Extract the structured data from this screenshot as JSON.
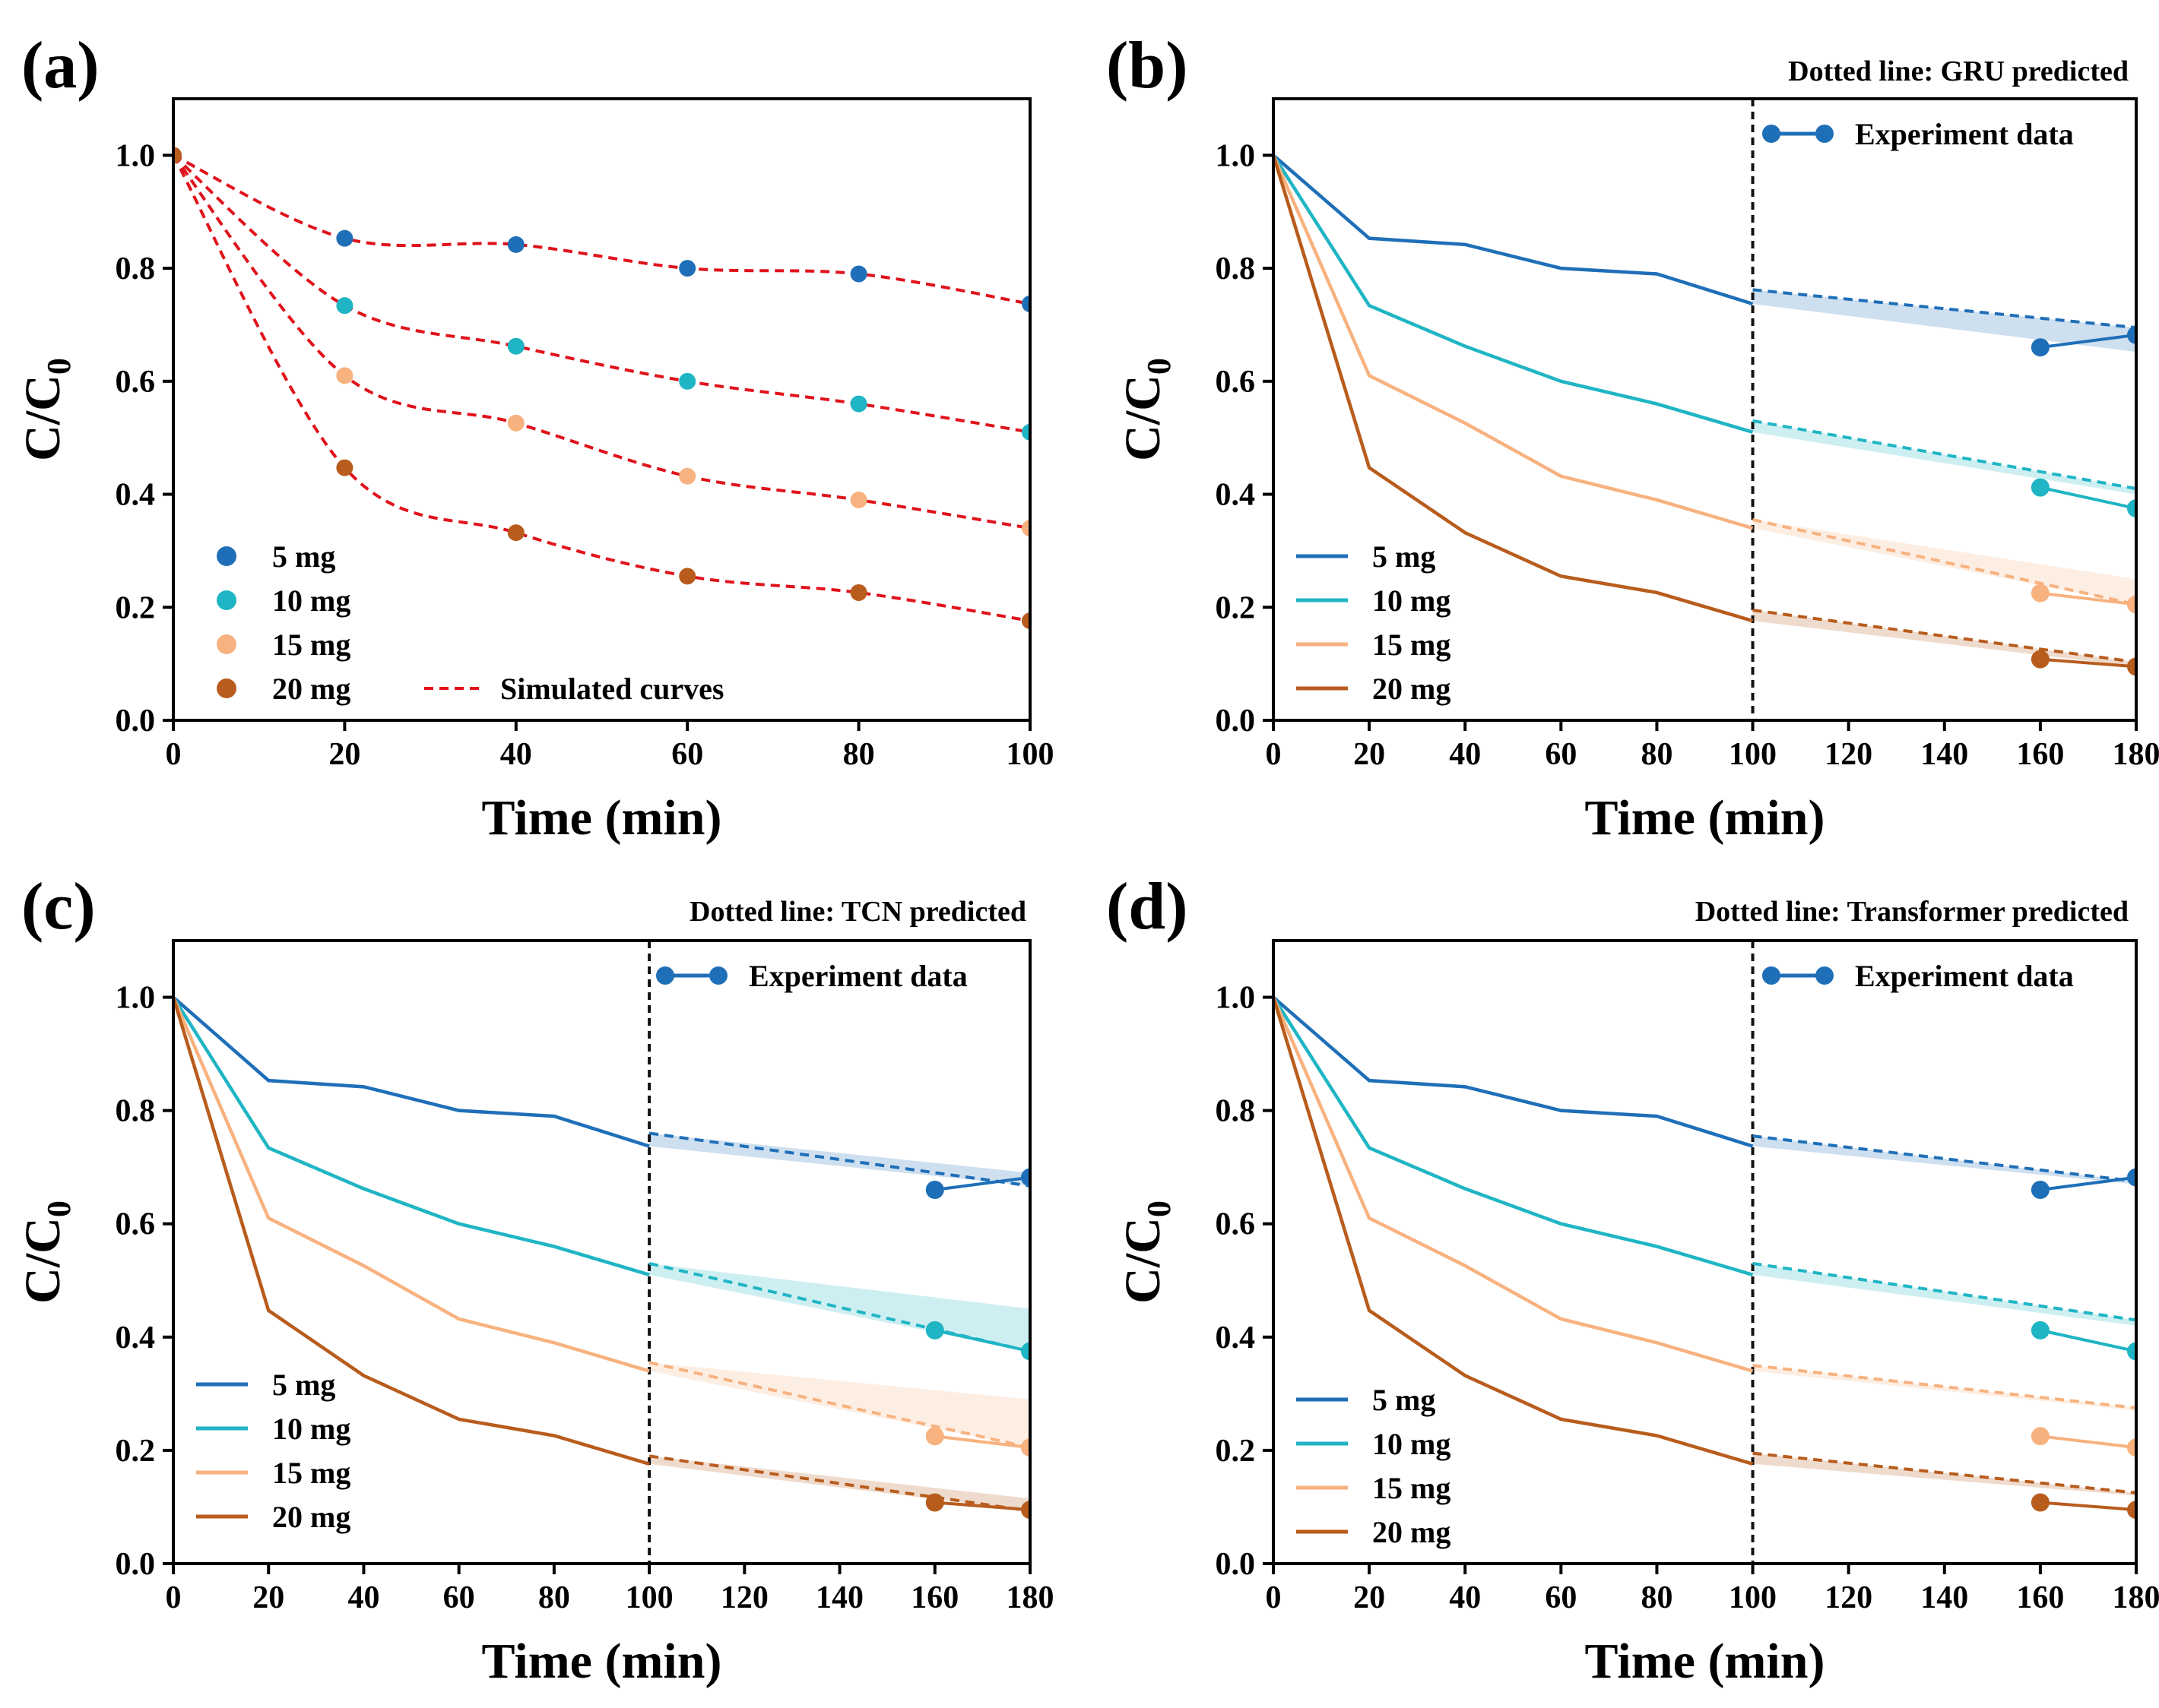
{
  "colors": {
    "5 mg": "#1f6fb8",
    "10 mg": "#1fb5c4",
    "15 mg": "#f7b27f",
    "20 mg": "#b85c1d",
    "simulated": "#e0121b",
    "vline": "#111111"
  },
  "chart_data": [
    {
      "id": "a",
      "type": "scatter",
      "panel_label": "(a)",
      "title": "",
      "xlabel": "Time (min)",
      "ylabel_main": "C/C",
      "ylabel_sub": "0",
      "xlim": [
        0,
        100
      ],
      "ylim": [
        0,
        1.1
      ],
      "xticks": [
        "0",
        "20",
        "40",
        "60",
        "80",
        "100"
      ],
      "yticks": [
        "0.0",
        "0.2",
        "0.4",
        "0.6",
        "0.8",
        "1.0"
      ],
      "legend_position": "bottom-left",
      "simulated_label": "Simulated curves",
      "x": [
        0,
        20,
        40,
        60,
        80,
        100
      ],
      "series": [
        {
          "name": "5 mg",
          "values": [
            1.0,
            0.853,
            0.842,
            0.8,
            0.79,
            0.737
          ]
        },
        {
          "name": "10 mg",
          "values": [
            1.0,
            0.734,
            0.662,
            0.6,
            0.56,
            0.51
          ]
        },
        {
          "name": "15 mg",
          "values": [
            1.0,
            0.61,
            0.526,
            0.432,
            0.39,
            0.34
          ]
        },
        {
          "name": "20 mg",
          "values": [
            1.0,
            0.447,
            0.332,
            0.255,
            0.226,
            0.176
          ]
        }
      ]
    },
    {
      "id": "b",
      "type": "line",
      "panel_label": "(b)",
      "title": "Dotted line: GRU predicted",
      "xlabel": "Time (min)",
      "ylabel_main": "C/C",
      "ylabel_sub": "0",
      "xlim": [
        0,
        180
      ],
      "ylim": [
        0,
        1.1
      ],
      "xticks": [
        "0",
        "20",
        "40",
        "60",
        "80",
        "100",
        "120",
        "140",
        "160",
        "180"
      ],
      "yticks": [
        "0.0",
        "0.2",
        "0.4",
        "0.6",
        "0.8",
        "1.0"
      ],
      "vline_x": 100,
      "experiment_legend": "Experiment data",
      "legend_position": "bottom-left",
      "x": [
        0,
        20,
        40,
        60,
        80,
        100
      ],
      "series": [
        {
          "name": "5 mg",
          "values": [
            1.0,
            0.853,
            0.842,
            0.8,
            0.79,
            0.737
          ],
          "pred_x": [
            100,
            180
          ],
          "pred": [
            0.762,
            0.695
          ],
          "band_upper": [
            0.762,
            0.695
          ],
          "band_lower": [
            0.737,
            0.652
          ],
          "exp_x": [
            160,
            180
          ],
          "exp": [
            0.66,
            0.682
          ]
        },
        {
          "name": "10 mg",
          "values": [
            1.0,
            0.734,
            0.662,
            0.6,
            0.56,
            0.51
          ],
          "pred_x": [
            100,
            180
          ],
          "pred": [
            0.53,
            0.41
          ],
          "band_upper": [
            0.53,
            0.41
          ],
          "band_lower": [
            0.51,
            0.4
          ],
          "exp_x": [
            160,
            180
          ],
          "exp": [
            0.412,
            0.375
          ]
        },
        {
          "name": "15 mg",
          "values": [
            1.0,
            0.61,
            0.526,
            0.432,
            0.39,
            0.34
          ],
          "pred_x": [
            100,
            180
          ],
          "pred": [
            0.355,
            0.205
          ],
          "band_upper": [
            0.355,
            0.25
          ],
          "band_lower": [
            0.34,
            0.205
          ],
          "exp_x": [
            160,
            180
          ],
          "exp": [
            0.225,
            0.205
          ]
        },
        {
          "name": "20 mg",
          "values": [
            1.0,
            0.447,
            0.332,
            0.255,
            0.226,
            0.176
          ],
          "pred_x": [
            100,
            180
          ],
          "pred": [
            0.195,
            0.103
          ],
          "band_upper": [
            0.195,
            0.103
          ],
          "band_lower": [
            0.176,
            0.095
          ],
          "exp_x": [
            160,
            180
          ],
          "exp": [
            0.108,
            0.095
          ]
        }
      ]
    },
    {
      "id": "c",
      "type": "line",
      "panel_label": "(c)",
      "title": "Dotted line: TCN predicted",
      "xlabel": "Time (min)",
      "ylabel_main": "C/C",
      "ylabel_sub": "0",
      "xlim": [
        0,
        180
      ],
      "ylim": [
        0,
        1.1
      ],
      "xticks": [
        "0",
        "20",
        "40",
        "60",
        "80",
        "100",
        "120",
        "140",
        "160",
        "180"
      ],
      "yticks": [
        "0.0",
        "0.2",
        "0.4",
        "0.6",
        "0.8",
        "1.0"
      ],
      "vline_x": 100,
      "experiment_legend": "Experiment data",
      "legend_position": "bottom-left",
      "x": [
        0,
        20,
        40,
        60,
        80,
        100
      ],
      "series": [
        {
          "name": "5 mg",
          "values": [
            1.0,
            0.853,
            0.842,
            0.8,
            0.79,
            0.737
          ],
          "pred_x": [
            100,
            180
          ],
          "pred": [
            0.76,
            0.667
          ],
          "band_upper": [
            0.76,
            0.69
          ],
          "band_lower": [
            0.737,
            0.667
          ],
          "exp_x": [
            160,
            180
          ],
          "exp": [
            0.66,
            0.682
          ]
        },
        {
          "name": "10 mg",
          "values": [
            1.0,
            0.734,
            0.662,
            0.6,
            0.56,
            0.51
          ],
          "pred_x": [
            100,
            180
          ],
          "pred": [
            0.53,
            0.375
          ],
          "band_upper": [
            0.53,
            0.45
          ],
          "band_lower": [
            0.51,
            0.375
          ],
          "exp_x": [
            160,
            180
          ],
          "exp": [
            0.412,
            0.375
          ]
        },
        {
          "name": "15 mg",
          "values": [
            1.0,
            0.61,
            0.526,
            0.432,
            0.39,
            0.34
          ],
          "pred_x": [
            100,
            180
          ],
          "pred": [
            0.355,
            0.205
          ],
          "band_upper": [
            0.355,
            0.29
          ],
          "band_lower": [
            0.34,
            0.205
          ],
          "exp_x": [
            160,
            180
          ],
          "exp": [
            0.225,
            0.205
          ]
        },
        {
          "name": "20 mg",
          "values": [
            1.0,
            0.447,
            0.332,
            0.255,
            0.226,
            0.176
          ],
          "pred_x": [
            100,
            180
          ],
          "pred": [
            0.19,
            0.093
          ],
          "band_upper": [
            0.19,
            0.115
          ],
          "band_lower": [
            0.176,
            0.093
          ],
          "exp_x": [
            160,
            180
          ],
          "exp": [
            0.108,
            0.095
          ]
        }
      ]
    },
    {
      "id": "d",
      "type": "line",
      "panel_label": "(d)",
      "title": "Dotted line: Transformer predicted",
      "xlabel": "Time (min)",
      "ylabel_main": "C/C",
      "ylabel_sub": "0",
      "xlim": [
        0,
        180
      ],
      "ylim": [
        0,
        1.1
      ],
      "xticks": [
        "0",
        "20",
        "40",
        "60",
        "80",
        "100",
        "120",
        "140",
        "160",
        "180"
      ],
      "yticks": [
        "0.0",
        "0.2",
        "0.4",
        "0.6",
        "0.8",
        "1.0"
      ],
      "vline_x": 100,
      "experiment_legend": "Experiment data",
      "legend_position": "bottom-left",
      "x": [
        0,
        20,
        40,
        60,
        80,
        100
      ],
      "series": [
        {
          "name": "5 mg",
          "values": [
            1.0,
            0.853,
            0.842,
            0.8,
            0.79,
            0.737
          ],
          "pred_x": [
            100,
            180
          ],
          "pred": [
            0.755,
            0.675
          ],
          "band_upper": [
            0.755,
            0.675
          ],
          "band_lower": [
            0.737,
            0.67
          ],
          "exp_x": [
            160,
            180
          ],
          "exp": [
            0.66,
            0.682
          ]
        },
        {
          "name": "10 mg",
          "values": [
            1.0,
            0.734,
            0.662,
            0.6,
            0.56,
            0.51
          ],
          "pred_x": [
            100,
            180
          ],
          "pred": [
            0.53,
            0.43
          ],
          "band_upper": [
            0.53,
            0.43
          ],
          "band_lower": [
            0.51,
            0.42
          ],
          "exp_x": [
            160,
            180
          ],
          "exp": [
            0.412,
            0.375
          ]
        },
        {
          "name": "15 mg",
          "values": [
            1.0,
            0.61,
            0.526,
            0.432,
            0.39,
            0.34
          ],
          "pred_x": [
            100,
            180
          ],
          "pred": [
            0.35,
            0.275
          ],
          "band_upper": [
            0.35,
            0.275
          ],
          "band_lower": [
            0.34,
            0.27
          ],
          "exp_x": [
            160,
            180
          ],
          "exp": [
            0.225,
            0.205
          ]
        },
        {
          "name": "20 mg",
          "values": [
            1.0,
            0.447,
            0.332,
            0.255,
            0.226,
            0.176
          ],
          "pred_x": [
            100,
            180
          ],
          "pred": [
            0.195,
            0.125
          ],
          "band_upper": [
            0.195,
            0.125
          ],
          "band_lower": [
            0.176,
            0.12
          ],
          "exp_x": [
            160,
            180
          ],
          "exp": [
            0.108,
            0.095
          ]
        }
      ]
    }
  ]
}
